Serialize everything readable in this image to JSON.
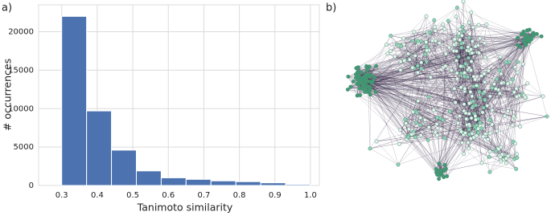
{
  "chart_data": {
    "type": "histogram",
    "panel_label": "a)",
    "xlabel": "Tanimoto similarity",
    "ylabel": "# occurrences",
    "bins": [
      0.3,
      0.37,
      0.44,
      0.51,
      0.58,
      0.65,
      0.72,
      0.79,
      0.86,
      0.93,
      1.0
    ],
    "values": [
      22000,
      9700,
      4600,
      1900,
      1000,
      800,
      600,
      500,
      350,
      150
    ],
    "color": "#4c72b0",
    "xlim": [
      0.235,
      1.025
    ],
    "ylim": [
      0,
      23500
    ],
    "xticks": [
      0.3,
      0.4,
      0.5,
      0.6,
      0.7,
      0.8,
      0.9,
      {
        "value": 1,
        "label": "1.0"
      }
    ],
    "yticks": [
      0,
      5000,
      10000,
      15000,
      20000
    ],
    "grid": true
  },
  "panel_b": {
    "label": "b)"
  }
}
